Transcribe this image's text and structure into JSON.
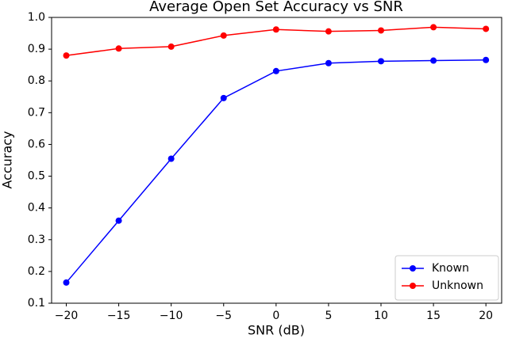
{
  "chart_data": {
    "type": "line",
    "title": "Average Open Set Accuracy vs SNR",
    "x_label": "SNR (dB)",
    "y_label": "Accuracy",
    "x": [
      -20,
      -15,
      -10,
      -5,
      0,
      5,
      10,
      15,
      20
    ],
    "series": [
      {
        "name": "Known",
        "color": "#0000ff",
        "values": [
          0.165,
          0.36,
          0.555,
          0.746,
          0.831,
          0.856,
          0.862,
          0.864,
          0.866
        ]
      },
      {
        "name": "Unknown",
        "color": "#ff0000",
        "values": [
          0.88,
          0.902,
          0.908,
          0.943,
          0.962,
          0.956,
          0.959,
          0.969,
          0.964
        ]
      }
    ],
    "xlim": [
      -21.4,
      21.5
    ],
    "ylim": [
      0.1,
      1.0
    ],
    "xticks": [
      {
        "value": -20,
        "label": "−20"
      },
      {
        "value": -15,
        "label": "−15"
      },
      {
        "value": -10,
        "label": "−10"
      },
      {
        "value": -5,
        "label": "−5"
      },
      0,
      5,
      10,
      15,
      20
    ],
    "yticks": [
      0.1,
      0.2,
      0.3,
      0.4,
      0.5,
      0.6,
      0.7,
      0.8,
      0.9,
      {
        "value": 1,
        "label": "1.0"
      }
    ],
    "legend": "lower right"
  }
}
